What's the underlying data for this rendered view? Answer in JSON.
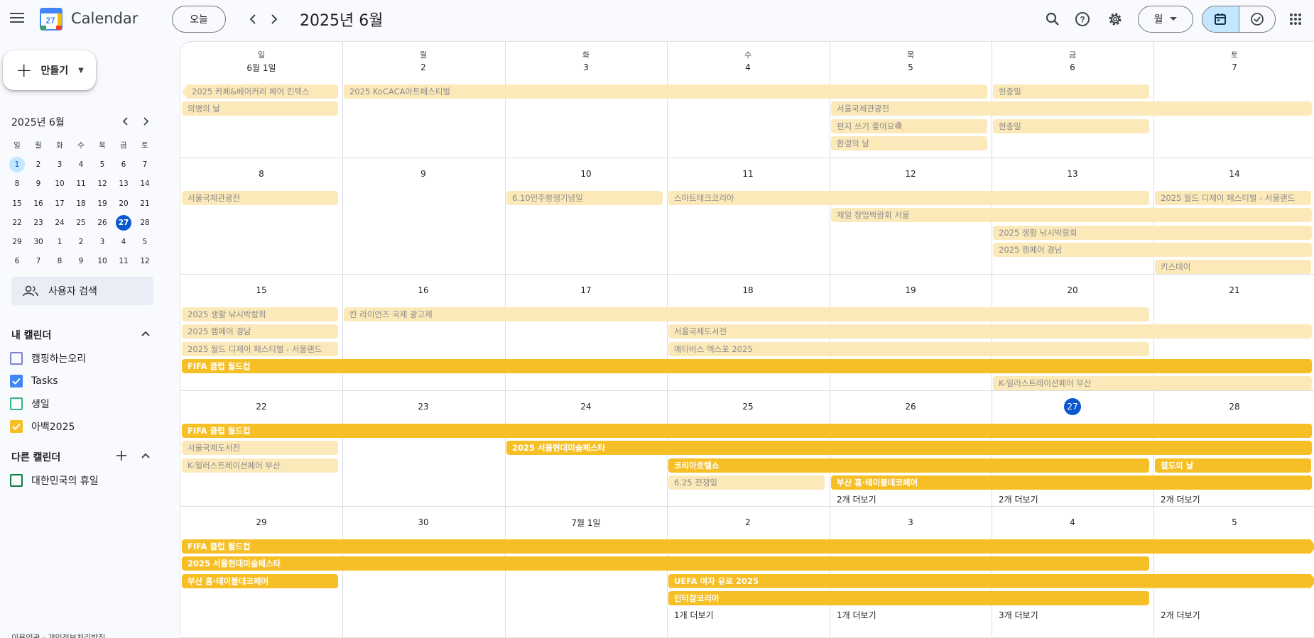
{
  "header": {
    "app_title": "Calendar",
    "logo_day": "27",
    "today_label": "오늘",
    "period": "2025년 6월",
    "view": "월"
  },
  "sidebar": {
    "create_label": "만들기",
    "mini_title": "2025년 6월",
    "weekdays": [
      "일",
      "월",
      "화",
      "수",
      "목",
      "금",
      "토"
    ],
    "mini_weeks": [
      [
        "1",
        "2",
        "3",
        "4",
        "5",
        "6",
        "7"
      ],
      [
        "8",
        "9",
        "10",
        "11",
        "12",
        "13",
        "14"
      ],
      [
        "15",
        "16",
        "17",
        "18",
        "19",
        "20",
        "21"
      ],
      [
        "22",
        "23",
        "24",
        "25",
        "26",
        "27",
        "28"
      ],
      [
        "29",
        "30",
        "1",
        "2",
        "3",
        "4",
        "5"
      ],
      [
        "6",
        "7",
        "8",
        "9",
        "10",
        "11",
        "12"
      ]
    ],
    "search_people": "사용자 검색",
    "my_calendars_title": "내 캘린더",
    "my_calendars": [
      {
        "name": "캠핑하는오리",
        "color": "#7986cb",
        "checked": false
      },
      {
        "name": "Tasks",
        "color": "#4285f4",
        "checked": true
      },
      {
        "name": "생일",
        "color": "#33b679",
        "checked": false
      },
      {
        "name": "아백2025",
        "color": "#f6bf26",
        "checked": true
      }
    ],
    "other_calendars_title": "다른 캘린더",
    "other_calendars": [
      {
        "name": "대한민국의 휴일",
        "color": "#0b8043",
        "checked": false
      }
    ],
    "footer": "이용약관 - 개인정보처리방침"
  },
  "grid": {
    "weekdays": [
      "일",
      "월",
      "화",
      "수",
      "목",
      "금",
      "토"
    ],
    "weeks": [
      {
        "days": [
          "6월 1일",
          "2",
          "3",
          "4",
          "5",
          "6",
          "7"
        ]
      },
      {
        "days": [
          "8",
          "9",
          "10",
          "11",
          "12",
          "13",
          "14"
        ]
      },
      {
        "days": [
          "15",
          "16",
          "17",
          "18",
          "19",
          "20",
          "21"
        ]
      },
      {
        "days": [
          "22",
          "23",
          "24",
          "25",
          "26",
          "27",
          "28"
        ]
      },
      {
        "days": [
          "29",
          "30",
          "7월 1일",
          "2",
          "3",
          "4",
          "5"
        ]
      }
    ],
    "today_label": "27",
    "events": [
      {
        "week": 0,
        "row": 0,
        "start": 0,
        "span": 1,
        "title": "2025 카페&베이커리 페어 킨텍스",
        "style": "pale",
        "cont": "left"
      },
      {
        "week": 0,
        "row": 0,
        "start": 1,
        "span": 4,
        "title": "2025 KoCACA아트페스티벌",
        "style": "pale"
      },
      {
        "week": 0,
        "row": 0,
        "start": 5,
        "span": 1,
        "title": "현충일",
        "style": "pale"
      },
      {
        "week": 0,
        "row": 1,
        "start": 0,
        "span": 1,
        "title": "의병의 날",
        "style": "pale"
      },
      {
        "week": 0,
        "row": 1,
        "start": 4,
        "span": 3,
        "title": "서울국제관광전",
        "style": "pale"
      },
      {
        "week": 0,
        "row": 2,
        "start": 4,
        "span": 1,
        "title": "편지 쓰기 좋아요🍭",
        "style": "pale"
      },
      {
        "week": 0,
        "row": 2,
        "start": 5,
        "span": 1,
        "title": "현충일",
        "style": "pale"
      },
      {
        "week": 0,
        "row": 3,
        "start": 4,
        "span": 1,
        "title": "환경의 날",
        "style": "pale"
      },
      {
        "week": 1,
        "row": 0,
        "start": 0,
        "span": 1,
        "title": "서울국제관광전",
        "style": "pale"
      },
      {
        "week": 1,
        "row": 0,
        "start": 2,
        "span": 1,
        "title": "6.10민주항쟁기념일",
        "style": "pale"
      },
      {
        "week": 1,
        "row": 0,
        "start": 3,
        "span": 3,
        "title": "스마트테크코리아",
        "style": "pale"
      },
      {
        "week": 1,
        "row": 0,
        "start": 6,
        "span": 1,
        "title": "2025 월드 디제이 페스티벌 - 서울랜드",
        "style": "pale"
      },
      {
        "week": 1,
        "row": 1,
        "start": 4,
        "span": 3,
        "title": "제일 창업박람회 서울",
        "style": "pale"
      },
      {
        "week": 1,
        "row": 2,
        "start": 5,
        "span": 2,
        "title": "2025 생활 낚시박람회",
        "style": "pale"
      },
      {
        "week": 1,
        "row": 3,
        "start": 5,
        "span": 2,
        "title": "2025 캠페어 경남",
        "style": "pale"
      },
      {
        "week": 1,
        "row": 4,
        "start": 6,
        "span": 1,
        "title": "키스데이",
        "style": "pale"
      },
      {
        "week": 2,
        "row": 0,
        "start": 0,
        "span": 1,
        "title": "2025 생활 낚시박람회",
        "style": "pale"
      },
      {
        "week": 2,
        "row": 0,
        "start": 1,
        "span": 5,
        "title": "칸 라이언즈 국제 광고제",
        "style": "pale"
      },
      {
        "week": 2,
        "row": 1,
        "start": 0,
        "span": 1,
        "title": "2025 캠페어 경남",
        "style": "pale"
      },
      {
        "week": 2,
        "row": 1,
        "start": 3,
        "span": 4,
        "title": "서울국제도서전",
        "style": "pale"
      },
      {
        "week": 2,
        "row": 2,
        "start": 0,
        "span": 1,
        "title": "2025 월드 디제이 페스티벌 - 서울랜드",
        "style": "pale"
      },
      {
        "week": 2,
        "row": 2,
        "start": 3,
        "span": 3,
        "title": "메타버스 엑스포 2025",
        "style": "pale"
      },
      {
        "week": 2,
        "row": 3,
        "start": 0,
        "span": 7,
        "title": "FIFA 클럽 월드컵",
        "style": "bold"
      },
      {
        "week": 2,
        "row": 4,
        "start": 5,
        "span": 2,
        "title": "K-일러스트레이션페어 부산",
        "style": "pale"
      },
      {
        "week": 3,
        "row": 0,
        "start": 0,
        "span": 7,
        "title": "FIFA 클럽 월드컵",
        "style": "bold"
      },
      {
        "week": 3,
        "row": 1,
        "start": 0,
        "span": 1,
        "title": "서울국제도서전",
        "style": "pale"
      },
      {
        "week": 3,
        "row": 1,
        "start": 2,
        "span": 5,
        "title": "2025 서울현대미술페스타",
        "style": "bold"
      },
      {
        "week": 3,
        "row": 2,
        "start": 0,
        "span": 1,
        "title": "K-일러스트레이션페어 부산",
        "style": "pale"
      },
      {
        "week": 3,
        "row": 2,
        "start": 3,
        "span": 3,
        "title": "코리아호텔쇼",
        "style": "bold"
      },
      {
        "week": 3,
        "row": 2,
        "start": 6,
        "span": 1,
        "title": "철도의 날",
        "style": "bold"
      },
      {
        "week": 3,
        "row": 3,
        "start": 3,
        "span": 1,
        "title": "6.25 전쟁일",
        "style": "pale"
      },
      {
        "week": 3,
        "row": 3,
        "start": 4,
        "span": 3,
        "title": "부산 홈·테이블데코페어",
        "style": "bold"
      },
      {
        "week": 4,
        "row": 0,
        "start": 0,
        "span": 7,
        "title": "FIFA 클럽 월드컵",
        "style": "bold",
        "cont": "right"
      },
      {
        "week": 4,
        "row": 1,
        "start": 0,
        "span": 6,
        "title": "2025 서울현대미술페스타",
        "style": "bold"
      },
      {
        "week": 4,
        "row": 2,
        "start": 0,
        "span": 1,
        "title": "부산 홈·테이블데코페어",
        "style": "bold"
      },
      {
        "week": 4,
        "row": 2,
        "start": 3,
        "span": 4,
        "title": "UEFA 여자 유로 2025",
        "style": "bold",
        "cont": "right"
      },
      {
        "week": 4,
        "row": 3,
        "start": 3,
        "span": 3,
        "title": "인터참코리아",
        "style": "bold"
      }
    ],
    "more": [
      {
        "week": 3,
        "row": 4,
        "col": 4,
        "label": "2개 더보기"
      },
      {
        "week": 3,
        "row": 4,
        "col": 5,
        "label": "2개 더보기"
      },
      {
        "week": 3,
        "row": 4,
        "col": 6,
        "label": "2개 더보기"
      },
      {
        "week": 4,
        "row": 4,
        "col": 3,
        "label": "1개 더보기"
      },
      {
        "week": 4,
        "row": 4,
        "col": 4,
        "label": "1개 더보기"
      },
      {
        "week": 4,
        "row": 4,
        "col": 5,
        "label": "3개 더보기"
      },
      {
        "week": 4,
        "row": 4,
        "col": 6,
        "label": "2개 더보기"
      }
    ]
  }
}
